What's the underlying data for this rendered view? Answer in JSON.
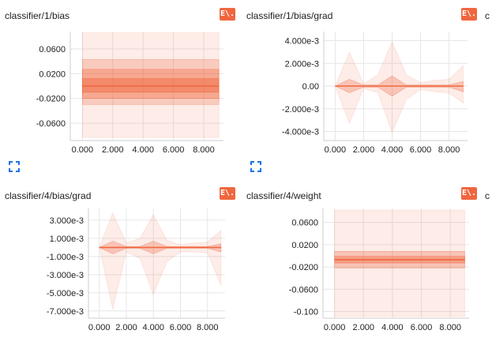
{
  "download_label": "E\\.",
  "truncated_next_title": "c",
  "accent_color": "#f0663f",
  "cards": [
    {
      "title": "classifier/1/bias",
      "chart_data": {
        "type": "area",
        "title": "classifier/1/bias",
        "x_ticks": [
          "0.000",
          "2.000",
          "4.000",
          "6.000",
          "8.000"
        ],
        "xlim": [
          -0.8,
          9.3
        ],
        "y_ticks": [
          {
            "v": 0.06,
            "label": "0.0600"
          },
          {
            "v": 0.02,
            "label": "0.0200"
          },
          {
            "v": -0.02,
            "label": "-0.0200"
          },
          {
            "v": -0.06,
            "label": "-0.0600"
          }
        ],
        "ylim": [
          -0.088,
          0.088
        ],
        "grid": true,
        "x": [
          0,
          9
        ],
        "bands": [
          {
            "upper": [
              0.086,
              0.086
            ],
            "lower": [
              -0.083,
              -0.083
            ],
            "opacity": 0.12
          },
          {
            "upper": [
              0.043,
              0.043
            ],
            "lower": [
              -0.03,
              -0.03
            ],
            "opacity": 0.25
          },
          {
            "upper": [
              0.027,
              0.027
            ],
            "lower": [
              -0.02,
              -0.02
            ],
            "opacity": 0.35
          },
          {
            "upper": [
              0.012,
              0.012
            ],
            "lower": [
              -0.01,
              -0.01
            ],
            "opacity": 0.45
          }
        ],
        "median": [
          0.0,
          0.0
        ]
      }
    },
    {
      "title": "classifier/1/bias/grad",
      "chart_data": {
        "type": "area",
        "title": "classifier/1/bias/grad",
        "x_ticks": [
          "0.000",
          "2.000",
          "4.000",
          "6.000",
          "8.000"
        ],
        "xlim": [
          -0.8,
          9.3
        ],
        "y_ticks": [
          {
            "v": 0.004,
            "label": "4.000e-3"
          },
          {
            "v": 0.002,
            "label": "2.000e-3"
          },
          {
            "v": 0.0,
            "label": "0.00"
          },
          {
            "v": -0.002,
            "label": "-2.000e-3"
          },
          {
            "v": -0.004,
            "label": "-4.000e-3"
          }
        ],
        "ylim": [
          -0.0048,
          0.0048
        ],
        "grid": true,
        "x": [
          0,
          1,
          2,
          3,
          4,
          5,
          6,
          7,
          8,
          9
        ],
        "bands": [
          {
            "upper": [
              0,
              0.003,
              0.0002,
              0.001,
              0.0039,
              0.001,
              0.0003,
              0.0005,
              0.0006,
              0.0018
            ],
            "lower": [
              0,
              -0.0033,
              -0.0002,
              -0.0006,
              -0.0041,
              -0.0012,
              -0.0003,
              -0.0005,
              -0.0006,
              -0.0015
            ],
            "opacity": 0.12
          },
          {
            "upper": [
              0,
              0.0006,
              0.0001,
              0.0001,
              0.0009,
              0.0001,
              0.0001,
              0.0001,
              0.0001,
              0.0004
            ],
            "lower": [
              0,
              -0.0006,
              -0.0001,
              -0.0001,
              -0.0009,
              -0.0001,
              -0.0001,
              -0.0001,
              -0.0001,
              -0.0005
            ],
            "opacity": 0.3
          }
        ],
        "median": [
          0,
          0,
          0,
          0,
          0,
          0,
          0,
          0,
          0,
          0
        ]
      }
    },
    {
      "title": "classifier/4/bias/grad",
      "chart_data": {
        "type": "area",
        "title": "classifier/4/bias/grad",
        "x_ticks": [
          "0.000",
          "2.000",
          "4.000",
          "6.000",
          "8.000"
        ],
        "xlim": [
          -0.8,
          9.3
        ],
        "y_ticks": [
          {
            "v": 0.003,
            "label": "3.000e-3"
          },
          {
            "v": 0.001,
            "label": "1.000e-3"
          },
          {
            "v": -0.001,
            "label": "-1.000e-3"
          },
          {
            "v": -0.003,
            "label": "-3.000e-3"
          },
          {
            "v": -0.005,
            "label": "-5.000e-3"
          },
          {
            "v": -0.007,
            "label": "-7.000e-3"
          }
        ],
        "ylim": [
          -0.0078,
          0.0043
        ],
        "grid": true,
        "x": [
          0,
          1,
          2,
          3,
          4,
          5,
          6,
          7,
          8,
          9
        ],
        "bands": [
          {
            "upper": [
              0,
              0.0038,
              0.0005,
              0.001,
              0.0036,
              0.0008,
              0.0003,
              0.0005,
              0.0006,
              0.0019
            ],
            "lower": [
              0,
              -0.0068,
              -0.0005,
              -0.0012,
              -0.0052,
              -0.0016,
              -0.0005,
              -0.0005,
              -0.0006,
              -0.0042
            ],
            "opacity": 0.12
          },
          {
            "upper": [
              0,
              0.0007,
              0.0001,
              0.0001,
              0.0007,
              0.0001,
              0.0001,
              0.0001,
              0.0001,
              0.0004
            ],
            "lower": [
              0,
              -0.0007,
              -0.0001,
              -0.0001,
              -0.0007,
              -0.0001,
              -0.0001,
              -0.0001,
              -0.0001,
              -0.0005
            ],
            "opacity": 0.3
          }
        ],
        "median": [
          0,
          0,
          0,
          0,
          0,
          0,
          0,
          0,
          0,
          0
        ]
      }
    },
    {
      "title": "classifier/4/weight",
      "chart_data": {
        "type": "area",
        "title": "classifier/4/weight",
        "x_ticks": [
          "0.000",
          "2.000",
          "4.000",
          "6.000",
          "8.000"
        ],
        "xlim": [
          -0.8,
          9.3
        ],
        "y_ticks": [
          {
            "v": 0.06,
            "label": "0.0600"
          },
          {
            "v": 0.02,
            "label": "0.0200"
          },
          {
            "v": -0.02,
            "label": "-0.0200"
          },
          {
            "v": -0.06,
            "label": "-0.0600"
          },
          {
            "v": -0.1,
            "label": "-0.100"
          }
        ],
        "ylim": [
          -0.112,
          0.085
        ],
        "grid": true,
        "x": [
          0,
          9
        ],
        "bands": [
          {
            "upper": [
              0.082,
              0.082
            ],
            "lower": [
              -0.109,
              -0.109
            ],
            "opacity": 0.12
          },
          {
            "upper": [
              0.0,
              0.0
            ],
            "lower": [
              -0.0,
              -0.0
            ],
            "opacity": 0.0
          },
          {
            "upper": [
              0.008,
              0.008
            ],
            "lower": [
              -0.022,
              -0.022
            ],
            "opacity": 0.3
          },
          {
            "upper": [
              -0.001,
              -0.001
            ],
            "lower": [
              -0.013,
              -0.013
            ],
            "opacity": 0.4
          }
        ],
        "median": [
          -0.007,
          -0.007
        ]
      }
    }
  ]
}
